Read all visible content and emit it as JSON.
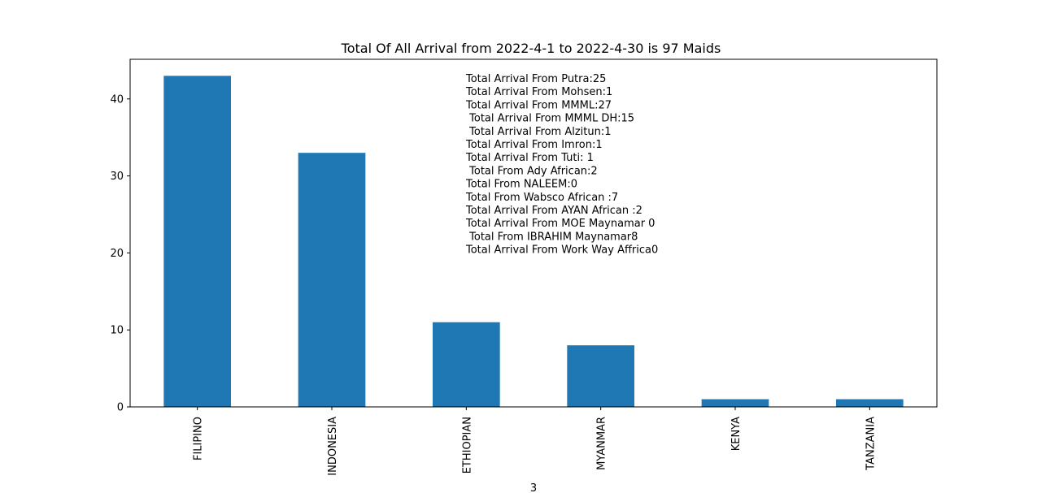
{
  "chart_data": {
    "type": "bar",
    "title": "Total Of All Arrival from 2022-4-1 to 2022-4-30 is 97 Maids",
    "xlabel": "3",
    "ylabel": "",
    "categories": [
      "FILIPINO",
      "INDONESIA",
      "ETHIOPIAN",
      "MYANMAR",
      "KENYA",
      "TANZANIA"
    ],
    "values": [
      43,
      33,
      11,
      8,
      1,
      1
    ],
    "yticks": [
      0,
      10,
      20,
      30,
      40
    ],
    "ylim": [
      0,
      45.15
    ],
    "bar_color": "#1f77b4",
    "grid": false,
    "annotation_lines": [
      "Total Arrival From Putra:25",
      "Total Arrival From Mohsen:1",
      "Total Arrival From MMML:27",
      " Total Arrival From MMML DH:15",
      " Total Arrival From Alzitun:1",
      "Total Arrival From Imron:1",
      "Total Arrival From Tuti: 1",
      " Total From Ady African:2",
      "Total From NALEEM:0",
      "Total From Wabsco African :7",
      "Total Arrival From AYAN African :2",
      "Total Arrival From MOE Maynamar 0",
      " Total From IBRAHIM Maynamar8",
      "Total Arrival From Work Way Affrica0"
    ]
  }
}
